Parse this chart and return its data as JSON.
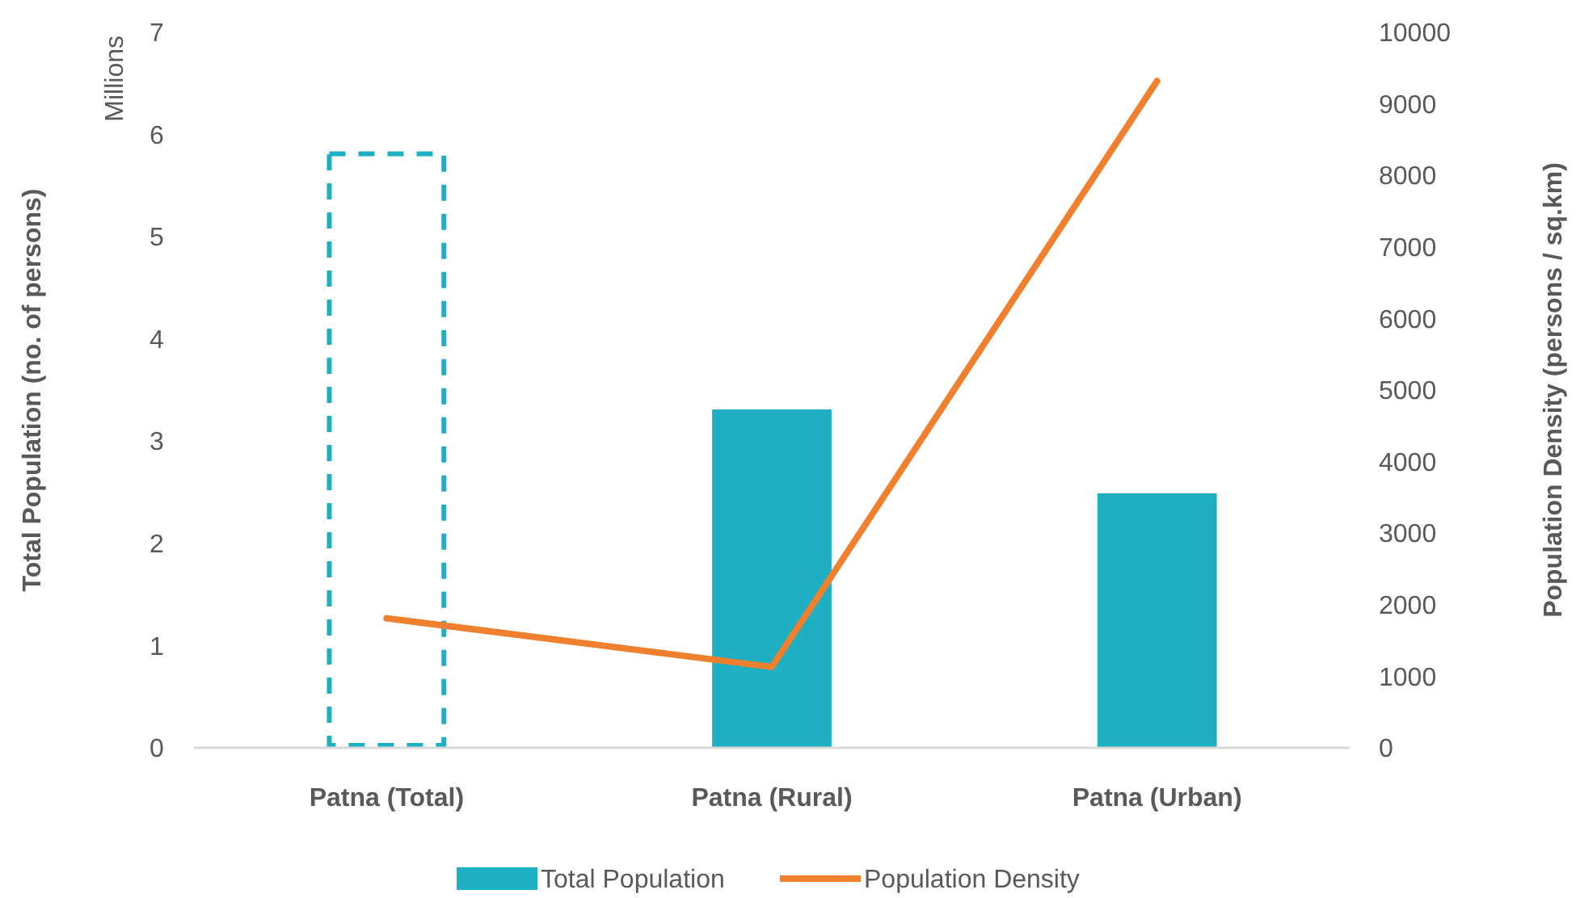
{
  "chart_data": {
    "type": "bar",
    "categories": [
      "Patna (Total)",
      "Patna (Rural)",
      "Patna (Urban)"
    ],
    "ylabel": "Total Population  (no. of persons)",
    "y2label": "Population  Density (persons / sq.km)",
    "annotations": [
      "Millions"
    ],
    "ylim": [
      0,
      7
    ],
    "yticks": [
      0,
      1,
      2,
      3,
      4,
      5,
      6,
      7
    ],
    "y2lim": [
      0,
      10000
    ],
    "y2ticks": [
      0,
      1000,
      2000,
      3000,
      4000,
      5000,
      6000,
      7000,
      8000,
      9000,
      10000
    ],
    "legend": "bottom",
    "grid": false,
    "series": [
      {
        "name": "Total Population",
        "color": "#1fafc3",
        "values": [
          5.81,
          3.31,
          2.49
        ],
        "line_style": [
          "dashed",
          "solid",
          "solid"
        ]
      },
      {
        "name": "Population Density",
        "type": "line",
        "axis": "y2",
        "color": "#f07f2e",
        "values": [
          1810,
          1130,
          9320
        ]
      }
    ]
  }
}
